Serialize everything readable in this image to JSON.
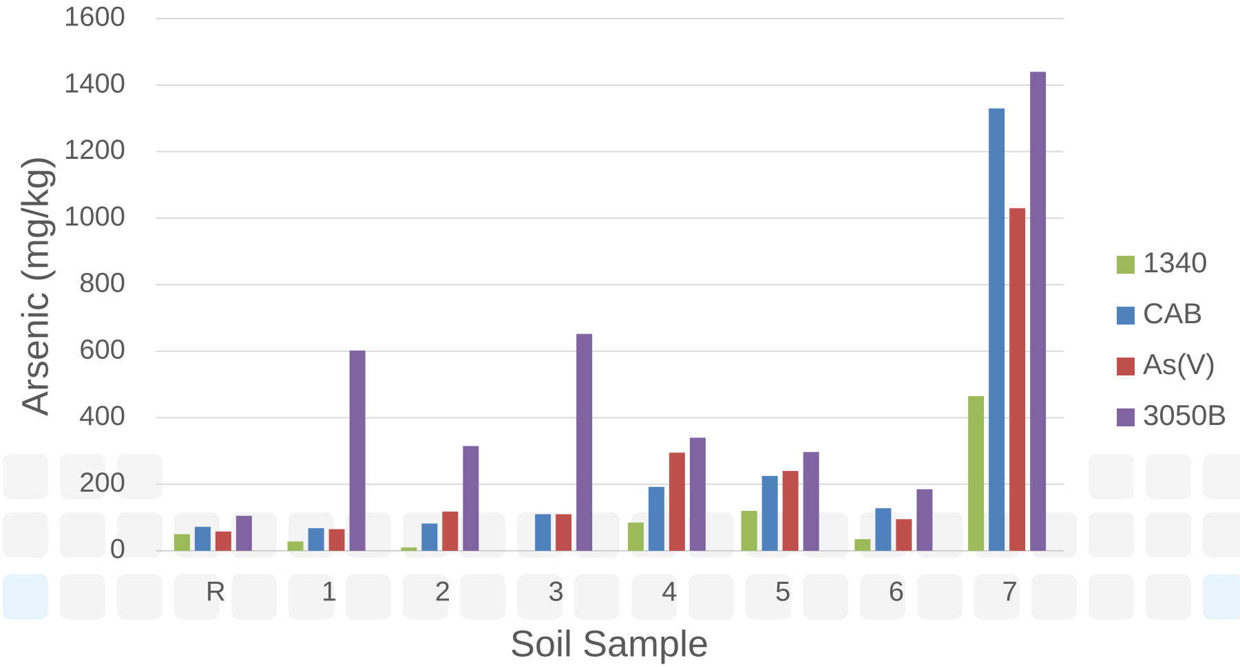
{
  "chart_data": {
    "type": "bar",
    "title": "",
    "xlabel": "Soil Sample",
    "ylabel": "Arsenic (mg/kg)",
    "ylim": [
      0,
      1600
    ],
    "yticks": [
      "0",
      "200",
      "400",
      "600",
      "800",
      "1000",
      "1200",
      "1400",
      "1600"
    ],
    "grid": true,
    "legend_position": "right",
    "categories": [
      "R",
      "1",
      "2",
      "3",
      "4",
      "5",
      "6",
      "7"
    ],
    "series": [
      {
        "name": "1340",
        "color": "#9bbb59",
        "values": [
          50,
          28,
          10,
          0,
          85,
          120,
          35,
          465
        ]
      },
      {
        "name": "CAB",
        "color": "#4f81bd",
        "values": [
          72,
          68,
          82,
          110,
          192,
          225,
          128,
          1330
        ]
      },
      {
        "name": "As(V)",
        "color": "#c0504d",
        "values": [
          58,
          65,
          118,
          110,
          295,
          240,
          95,
          1030
        ]
      },
      {
        "name": "3050B",
        "color": "#8064a2",
        "values": [
          105,
          602,
          315,
          652,
          340,
          297,
          185,
          1440
        ]
      }
    ]
  }
}
